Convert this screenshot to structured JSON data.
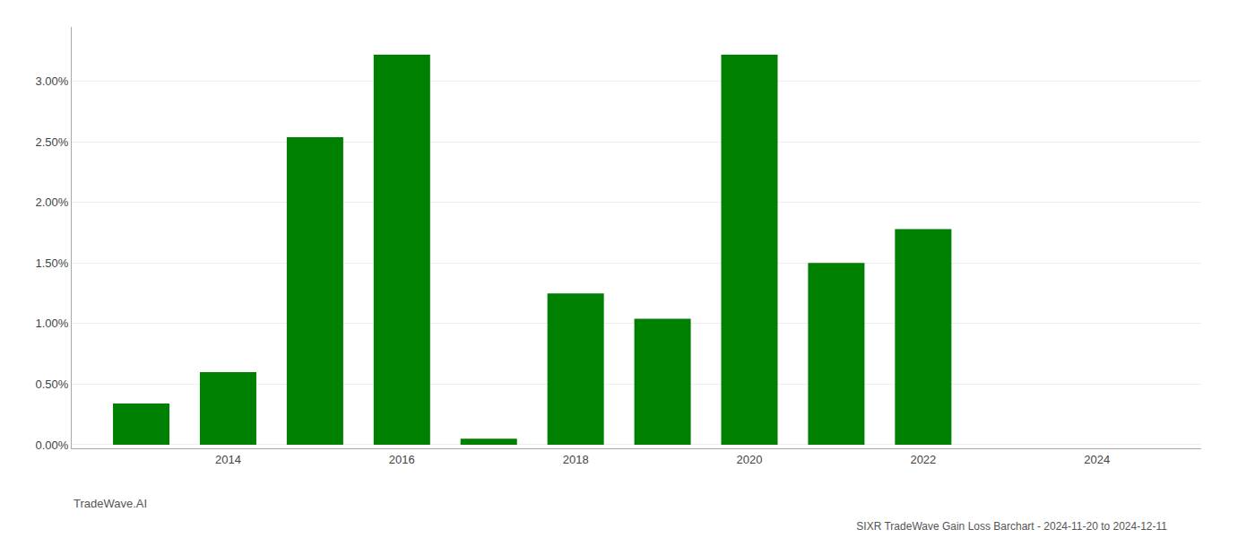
{
  "chart_data": {
    "type": "bar",
    "title": "SIXR TradeWave Gain Loss Barchart - 2024-11-20 to 2024-12-11",
    "annotations": [
      {
        "text": "TradeWave.AI"
      }
    ],
    "x": [
      2013,
      2014,
      2015,
      2016,
      2017,
      2018,
      2019,
      2020,
      2021,
      2022,
      2023
    ],
    "values": [
      0.0034,
      0.006,
      0.0254,
      0.0322,
      0.0005,
      0.0125,
      0.0104,
      0.0322,
      0.015,
      0.0178,
      0.0
    ],
    "color": "#008000",
    "xlim": [
      2012.2,
      2025.2
    ],
    "xticks": [
      2014,
      2016,
      2018,
      2020,
      2022,
      2024
    ],
    "ylim": [
      -0.0003,
      0.0345
    ],
    "yticks": [
      {
        "value": 0.0,
        "label": "0.00%"
      },
      {
        "value": 0.005,
        "label": "0.50%"
      },
      {
        "value": 0.01,
        "label": "1.00%"
      },
      {
        "value": 0.015,
        "label": "1.50%"
      },
      {
        "value": 0.02,
        "label": "2.00%"
      },
      {
        "value": 0.025,
        "label": "2.50%"
      },
      {
        "value": 0.03,
        "label": "3.00%"
      }
    ],
    "grid": true
  }
}
